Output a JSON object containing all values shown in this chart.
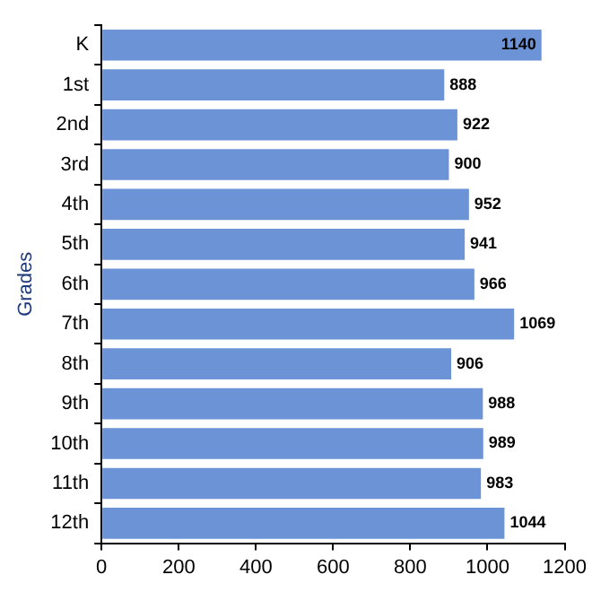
{
  "chart_data": {
    "type": "bar",
    "orientation": "horizontal",
    "ylabel": "Grades",
    "categories": [
      "K",
      "1st",
      "2nd",
      "3rd",
      "4th",
      "5th",
      "6th",
      "7th",
      "8th",
      "9th",
      "10th",
      "11th",
      "12th"
    ],
    "values": [
      1140,
      888,
      922,
      900,
      952,
      941,
      966,
      1069,
      906,
      988,
      989,
      983,
      1044
    ],
    "color": "#6b93d6",
    "xlim": [
      0,
      1200
    ],
    "xticks": [
      0,
      200,
      400,
      600,
      800,
      1000,
      1200
    ],
    "grid": false,
    "legend": false,
    "data_labels": true
  }
}
